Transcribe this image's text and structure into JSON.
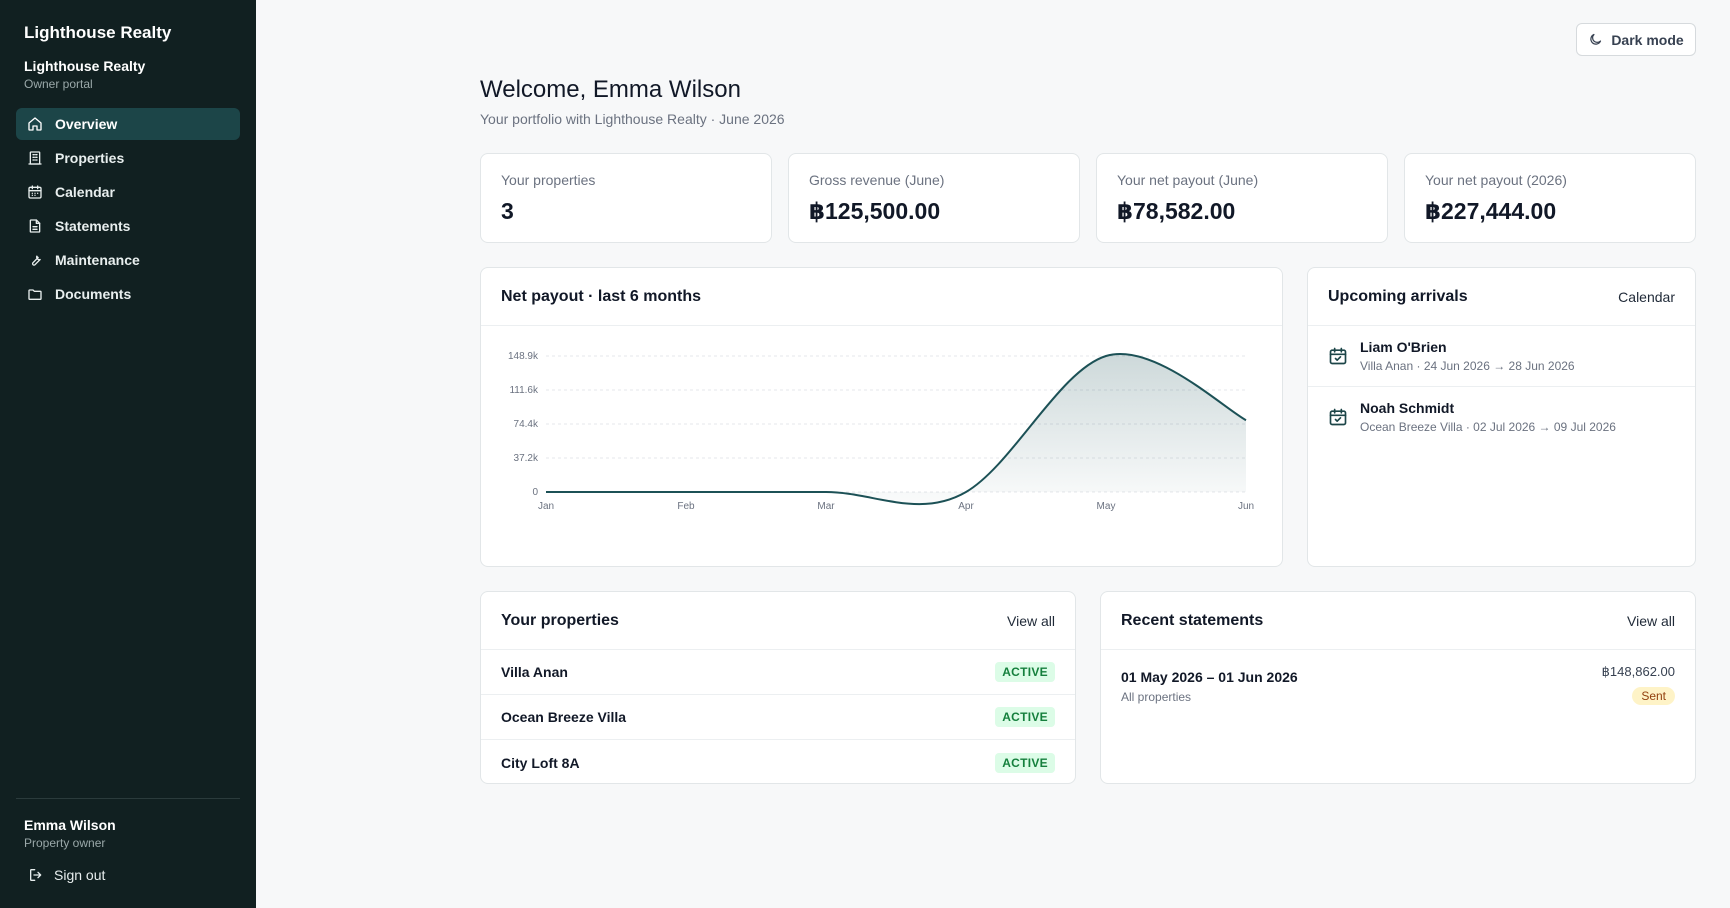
{
  "sidebar": {
    "brand": "Lighthouse Realty",
    "org_name": "Lighthouse Realty",
    "org_sub": "Owner portal",
    "nav": [
      {
        "label": "Overview",
        "icon": "home-icon",
        "active": true
      },
      {
        "label": "Properties",
        "icon": "building-icon"
      },
      {
        "label": "Calendar",
        "icon": "calendar-icon"
      },
      {
        "label": "Statements",
        "icon": "document-icon"
      },
      {
        "label": "Maintenance",
        "icon": "wrench-icon"
      },
      {
        "label": "Documents",
        "icon": "folder-icon"
      }
    ],
    "user": {
      "name": "Emma Wilson",
      "role": "Property owner"
    },
    "signout_label": "Sign out"
  },
  "header": {
    "dark_mode_label": "Dark mode",
    "welcome": "Welcome, Emma Wilson",
    "subtitle": "Your portfolio with Lighthouse Realty · June 2026"
  },
  "stats": [
    {
      "label": "Your properties",
      "value": "3"
    },
    {
      "label": "Gross revenue (June)",
      "value": "฿125,500.00"
    },
    {
      "label": "Your net payout (June)",
      "value": "฿78,582.00"
    },
    {
      "label": "Your net payout (2026)",
      "value": "฿227,444.00"
    }
  ],
  "payout_chart": {
    "title": "Net payout · last 6 months"
  },
  "chart_data": {
    "type": "area",
    "title": "Net payout · last 6 months",
    "categories": [
      "Jan",
      "Feb",
      "Mar",
      "Apr",
      "May",
      "Jun"
    ],
    "values": [
      0,
      0,
      0,
      0,
      148862,
      78582
    ],
    "y_ticks": [
      "0",
      "37.2k",
      "74.4k",
      "111.6k",
      "148.9k"
    ],
    "ylim": [
      0,
      148862
    ],
    "grid": true,
    "color": "#1c5156"
  },
  "arrivals": {
    "title": "Upcoming arrivals",
    "link": "Calendar",
    "items": [
      {
        "name": "Liam O'Brien",
        "detail": "Villa Anan · 24 Jun 2026 → 28 Jun 2026"
      },
      {
        "name": "Noah Schmidt",
        "detail": "Ocean Breeze Villa · 02 Jul 2026 → 09 Jul 2026"
      }
    ]
  },
  "properties": {
    "title": "Your properties",
    "link": "View all",
    "items": [
      {
        "name": "Villa Anan",
        "status": "ACTIVE"
      },
      {
        "name": "Ocean Breeze Villa",
        "status": "ACTIVE"
      },
      {
        "name": "City Loft 8A",
        "status": "ACTIVE"
      }
    ]
  },
  "statements": {
    "title": "Recent statements",
    "link": "View all",
    "items": [
      {
        "period": "01 May 2026 – 01 Jun 2026",
        "scope": "All properties",
        "amount": "฿148,862.00",
        "status": "Sent"
      }
    ]
  }
}
